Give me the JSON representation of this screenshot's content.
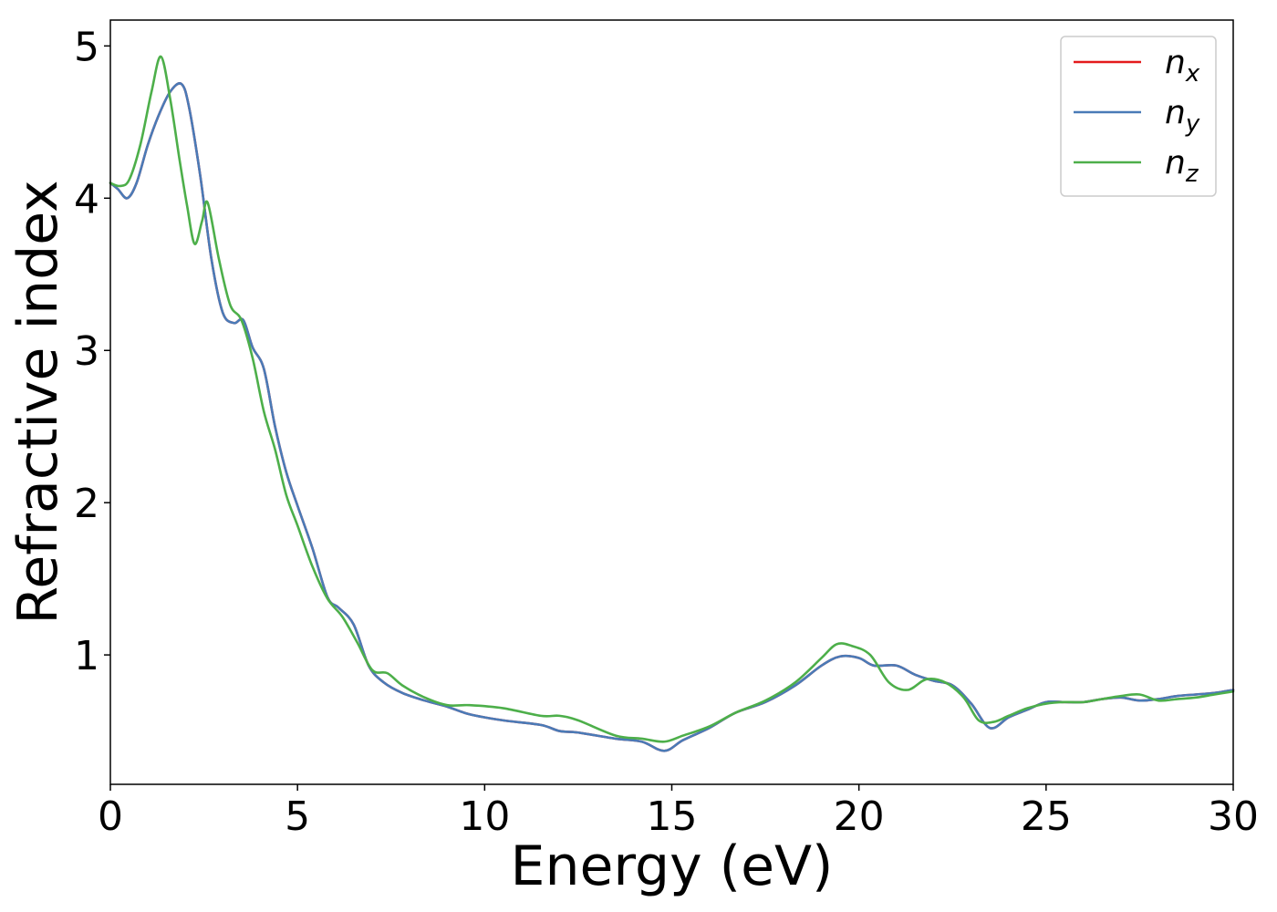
{
  "chart_data": {
    "type": "line",
    "xlabel": "Energy (eV)",
    "ylabel": "Refractive index",
    "xlim": [
      0,
      30
    ],
    "ylim": [
      0.15,
      5.17
    ],
    "xticks": [
      0,
      5,
      10,
      15,
      20,
      25,
      30
    ],
    "xtick_labels": [
      "0",
      "5",
      "10",
      "15",
      "20",
      "25",
      "30"
    ],
    "yticks": [
      1,
      2,
      3,
      4,
      5
    ],
    "ytick_labels": [
      "1",
      "2",
      "3",
      "4",
      "5"
    ],
    "grid": false,
    "legend_position": "top-right",
    "series": [
      {
        "name": "n_x",
        "legend_base": "n",
        "legend_sub": "x",
        "color": "#e41a1c",
        "x": [
          0,
          0.2,
          0.45,
          0.7,
          1.0,
          1.3,
          1.6,
          1.9,
          2.1,
          2.4,
          2.7,
          3.0,
          3.3,
          3.55,
          3.8,
          4.1,
          4.4,
          4.7,
          5.0,
          5.4,
          5.8,
          6.1,
          6.5,
          6.9,
          7.3,
          7.8,
          8.4,
          9.0,
          9.6,
          10.5,
          11.5,
          12.0,
          12.5,
          13.5,
          14.2,
          14.8,
          15.3,
          16.0,
          16.7,
          17.5,
          18.3,
          19.0,
          19.5,
          20.0,
          20.4,
          21.0,
          21.5,
          22.0,
          22.5,
          23.0,
          23.5,
          24.0,
          24.5,
          25.0,
          25.5,
          26.0,
          26.5,
          27.0,
          27.5,
          28.0,
          28.5,
          29.0,
          29.5,
          30.0
        ],
        "y": [
          4.1,
          4.06,
          4.0,
          4.1,
          4.35,
          4.55,
          4.7,
          4.75,
          4.6,
          4.15,
          3.6,
          3.25,
          3.18,
          3.2,
          3.02,
          2.88,
          2.5,
          2.2,
          1.98,
          1.7,
          1.38,
          1.31,
          1.2,
          0.93,
          0.82,
          0.75,
          0.7,
          0.66,
          0.61,
          0.57,
          0.54,
          0.5,
          0.49,
          0.45,
          0.43,
          0.37,
          0.44,
          0.52,
          0.62,
          0.69,
          0.8,
          0.93,
          0.99,
          0.98,
          0.93,
          0.93,
          0.87,
          0.83,
          0.8,
          0.68,
          0.52,
          0.59,
          0.64,
          0.69,
          0.69,
          0.69,
          0.71,
          0.72,
          0.7,
          0.71,
          0.73,
          0.74,
          0.75,
          0.77
        ]
      },
      {
        "name": "n_y",
        "legend_base": "n",
        "legend_sub": "y",
        "color": "#4a7bb7",
        "x": [
          0,
          0.2,
          0.45,
          0.7,
          1.0,
          1.3,
          1.6,
          1.9,
          2.1,
          2.4,
          2.7,
          3.0,
          3.3,
          3.55,
          3.8,
          4.1,
          4.4,
          4.7,
          5.0,
          5.4,
          5.8,
          6.1,
          6.5,
          6.9,
          7.3,
          7.8,
          8.4,
          9.0,
          9.6,
          10.5,
          11.5,
          12.0,
          12.5,
          13.5,
          14.2,
          14.8,
          15.3,
          16.0,
          16.7,
          17.5,
          18.3,
          19.0,
          19.5,
          20.0,
          20.4,
          21.0,
          21.5,
          22.0,
          22.5,
          23.0,
          23.5,
          24.0,
          24.5,
          25.0,
          25.5,
          26.0,
          26.5,
          27.0,
          27.5,
          28.0,
          28.5,
          29.0,
          29.5,
          30.0
        ],
        "y": [
          4.1,
          4.06,
          4.0,
          4.1,
          4.35,
          4.55,
          4.7,
          4.75,
          4.6,
          4.15,
          3.6,
          3.25,
          3.18,
          3.2,
          3.02,
          2.88,
          2.5,
          2.2,
          1.98,
          1.7,
          1.38,
          1.31,
          1.2,
          0.93,
          0.82,
          0.75,
          0.7,
          0.66,
          0.61,
          0.57,
          0.54,
          0.5,
          0.49,
          0.45,
          0.43,
          0.37,
          0.44,
          0.52,
          0.62,
          0.69,
          0.8,
          0.93,
          0.99,
          0.98,
          0.93,
          0.93,
          0.87,
          0.83,
          0.8,
          0.68,
          0.52,
          0.59,
          0.64,
          0.69,
          0.69,
          0.69,
          0.71,
          0.72,
          0.7,
          0.71,
          0.73,
          0.74,
          0.75,
          0.77
        ]
      },
      {
        "name": "n_z",
        "legend_base": "n",
        "legend_sub": "z",
        "color": "#4daf4a",
        "x": [
          0,
          0.25,
          0.5,
          0.8,
          1.1,
          1.35,
          1.6,
          1.85,
          2.05,
          2.25,
          2.45,
          2.6,
          2.9,
          3.2,
          3.5,
          3.8,
          4.1,
          4.4,
          4.7,
          5.0,
          5.4,
          5.8,
          6.2,
          6.6,
          7.0,
          7.4,
          7.8,
          8.4,
          9.0,
          9.6,
          10.5,
          11.5,
          12.0,
          12.5,
          13.5,
          14.2,
          14.8,
          15.3,
          16.0,
          16.7,
          17.5,
          18.3,
          19.0,
          19.4,
          19.8,
          20.3,
          20.8,
          21.3,
          21.8,
          22.3,
          22.8,
          23.2,
          23.6,
          24.0,
          24.5,
          25.0,
          25.5,
          26.0,
          26.5,
          27.0,
          27.5,
          28.0,
          28.5,
          29.0,
          29.5,
          30.0
        ],
        "y": [
          4.1,
          4.08,
          4.12,
          4.35,
          4.7,
          4.93,
          4.65,
          4.25,
          3.95,
          3.7,
          3.85,
          3.97,
          3.6,
          3.3,
          3.2,
          2.95,
          2.6,
          2.35,
          2.05,
          1.85,
          1.58,
          1.37,
          1.25,
          1.08,
          0.9,
          0.88,
          0.8,
          0.72,
          0.67,
          0.67,
          0.65,
          0.6,
          0.6,
          0.57,
          0.47,
          0.45,
          0.43,
          0.47,
          0.53,
          0.62,
          0.7,
          0.82,
          0.98,
          1.07,
          1.06,
          1.0,
          0.82,
          0.77,
          0.84,
          0.82,
          0.72,
          0.57,
          0.56,
          0.6,
          0.65,
          0.68,
          0.69,
          0.69,
          0.71,
          0.73,
          0.74,
          0.7,
          0.71,
          0.72,
          0.74,
          0.76
        ]
      }
    ]
  }
}
